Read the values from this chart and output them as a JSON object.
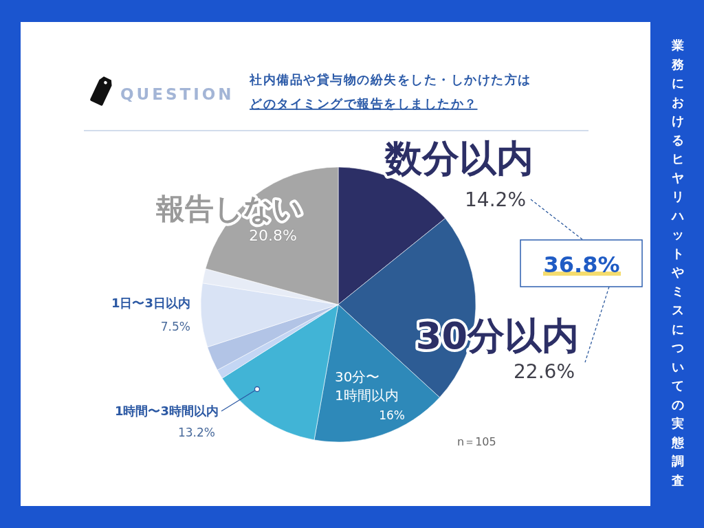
{
  "chart_data": {
    "type": "pie",
    "title": "社内備品や貸与物の紛失をした・しかけた方はどのタイミングで報告をしましたか？",
    "subtitle": "業務におけるヒヤリハットやミスについての実態調査",
    "annotations": [
      "QUESTION",
      "36.8%",
      "n＝105"
    ],
    "categories": [
      "数分以内",
      "30分以内",
      "30分〜1時間以内",
      "1時間〜3時間以内",
      null,
      null,
      "1日〜3日以内",
      null,
      "報告しない"
    ],
    "values": [
      14.2,
      22.6,
      16,
      13.2,
      1.1,
      2.9,
      7.5,
      1.7,
      20.8
    ],
    "colors": [
      "#2c2f66",
      "#2d5c94",
      "#2e89b9",
      "#41b4d6",
      "#c4d6f4",
      "#b2c4e6",
      "#d9e3f5",
      "#e7ecf6",
      "#a6a6a6"
    ],
    "value_labels": [
      "14.2%",
      "22.6%",
      "16%",
      "13.2%",
      null,
      null,
      "7.5%",
      null,
      "20.8%"
    ]
  }
}
